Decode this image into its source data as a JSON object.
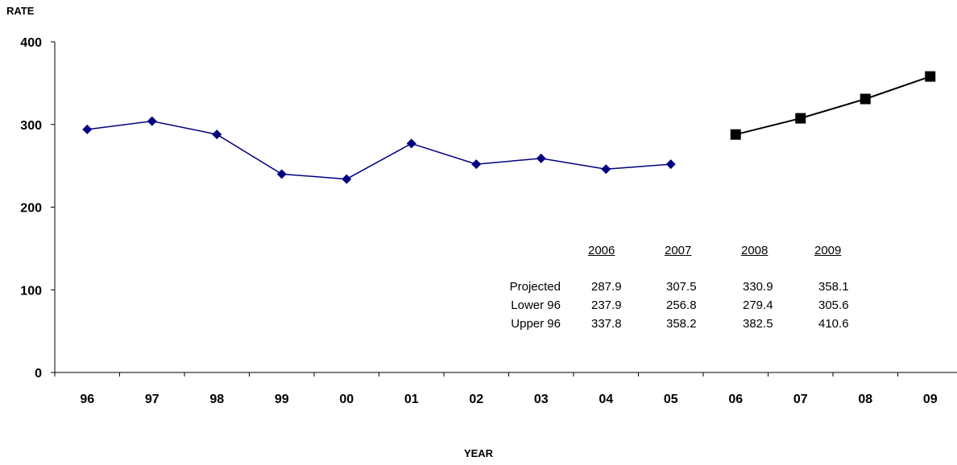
{
  "chart_data": {
    "type": "line",
    "ylabel": "RATE",
    "xlabel": "YEAR",
    "ylim": [
      0,
      400
    ],
    "yticks": [
      "0",
      "100",
      "200",
      "300",
      "400"
    ],
    "categories": [
      "96",
      "97",
      "98",
      "99",
      "00",
      "01",
      "02",
      "03",
      "04",
      "05",
      "06",
      "07",
      "08",
      "09"
    ],
    "series": [
      {
        "color": "#000080",
        "marker": "diamond",
        "x": [
          "96",
          "97",
          "98",
          "99",
          "00",
          "01",
          "02",
          "03",
          "04",
          "05"
        ],
        "values": [
          294,
          304,
          288,
          240,
          234,
          277,
          252,
          259,
          246,
          252
        ]
      },
      {
        "color": "#000000",
        "marker": "square",
        "x": [
          "06",
          "07",
          "08",
          "09"
        ],
        "values": [
          287.9,
          307.5,
          330.9,
          358.1
        ]
      }
    ],
    "table": {
      "headers": [
        "2006",
        "2007",
        "2008",
        "2009"
      ],
      "rows": [
        {
          "label": "Projected",
          "values": [
            "287.9",
            "307.5",
            "330.9",
            "358.1"
          ]
        },
        {
          "label": "Lower 96",
          "values": [
            "237.9",
            "256.8",
            "279.4",
            "305.6"
          ]
        },
        {
          "label": "Upper 96",
          "values": [
            "337.8",
            "358.2",
            "382.5",
            "410.6"
          ]
        }
      ]
    }
  }
}
